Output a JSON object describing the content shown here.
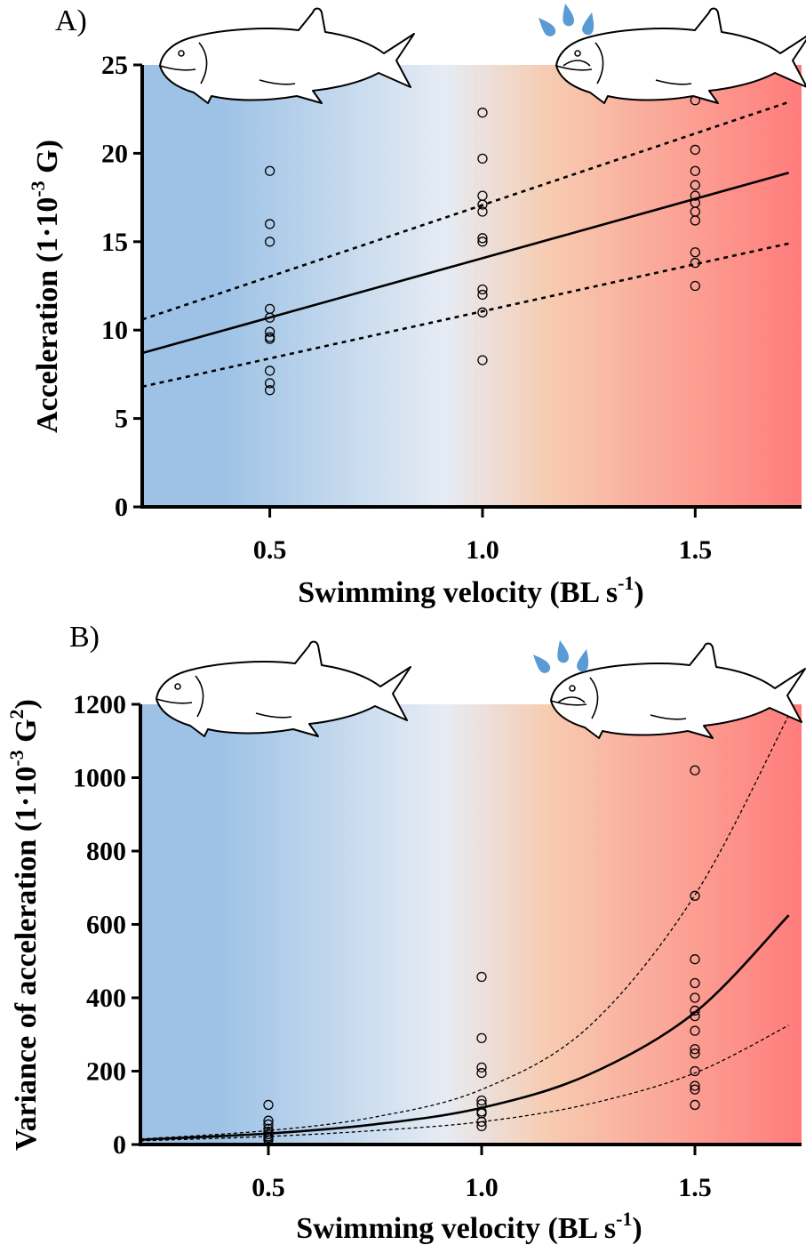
{
  "figure": {
    "panels": [
      {
        "id": "A",
        "label": "A)",
        "x_ticks": [
          "0.5",
          "1.0",
          "1.5"
        ],
        "y_ticks": [
          "0",
          "5",
          "10",
          "15",
          "20",
          "25"
        ],
        "x_title": {
          "main": "Swimming velocity (BL s",
          "sup": "-1",
          "close": ")"
        },
        "y_title": {
          "main": "Acceleration (1·10",
          "sup": "-3",
          "close": " G)"
        }
      },
      {
        "id": "B",
        "label": "B)",
        "x_ticks": [
          "0.5",
          "1.0",
          "1.5"
        ],
        "y_ticks": [
          "0",
          "200",
          "400",
          "600",
          "800",
          "1000",
          "1200"
        ],
        "x_title": {
          "main": "Swimming velocity (BL s",
          "sup": "-1",
          "close": ")"
        },
        "y_title": {
          "main": "Variance of acceleration (1·10",
          "sup": "-3",
          "mid": " G",
          "sup2": "2",
          "close": ")"
        }
      }
    ]
  },
  "colors": {
    "gradient_stops": [
      "#9dc2e6",
      "#e6ecf4",
      "#f7cbb0",
      "#ff7c7c"
    ],
    "points": "#000000",
    "drops": "#5b9bd5"
  },
  "icons": [
    "salmon-calm-icon",
    "salmon-stressed-icon",
    "sweat-drops-icon"
  ],
  "chart_data": [
    {
      "type": "scatter",
      "panel": "A",
      "xlabel": "Swimming velocity (BL s-1)",
      "ylabel": "Acceleration (1·10-3 G)",
      "xlim": [
        0.2,
        1.75
      ],
      "ylim": [
        0,
        25
      ],
      "x_ticks": [
        0.5,
        1.0,
        1.5
      ],
      "y_ticks": [
        0,
        5,
        10,
        15,
        20,
        25
      ],
      "background": "blue-to-red gradient along x",
      "series": [
        {
          "type": "scatter",
          "points": [
            [
              0.5,
              19.0
            ],
            [
              0.5,
              16.0
            ],
            [
              0.5,
              15.0
            ],
            [
              0.5,
              11.2
            ],
            [
              0.5,
              10.7
            ],
            [
              0.5,
              9.9
            ],
            [
              0.5,
              9.6
            ],
            [
              0.5,
              9.5
            ],
            [
              0.5,
              7.7
            ],
            [
              0.5,
              7.0
            ],
            [
              0.5,
              6.6
            ],
            [
              1.0,
              22.3
            ],
            [
              1.0,
              19.7
            ],
            [
              1.0,
              17.6
            ],
            [
              1.0,
              17.1
            ],
            [
              1.0,
              16.7
            ],
            [
              1.0,
              15.2
            ],
            [
              1.0,
              15.0
            ],
            [
              1.0,
              12.3
            ],
            [
              1.0,
              12.0
            ],
            [
              1.0,
              11.0
            ],
            [
              1.0,
              8.3
            ],
            [
              1.5,
              23.0
            ],
            [
              1.5,
              20.2
            ],
            [
              1.5,
              19.0
            ],
            [
              1.5,
              18.2
            ],
            [
              1.5,
              17.6
            ],
            [
              1.5,
              17.2
            ],
            [
              1.5,
              16.7
            ],
            [
              1.5,
              16.2
            ],
            [
              1.5,
              14.4
            ],
            [
              1.5,
              13.8
            ],
            [
              1.5,
              12.5
            ]
          ]
        },
        {
          "type": "line",
          "style": "solid",
          "points": [
            [
              0.2,
              8.7
            ],
            [
              1.72,
              18.9
            ]
          ]
        },
        {
          "type": "line",
          "style": "dashed",
          "points": [
            [
              0.2,
              10.6
            ],
            [
              1.72,
              22.9
            ]
          ]
        },
        {
          "type": "line",
          "style": "dashed",
          "points": [
            [
              0.2,
              6.8
            ],
            [
              1.72,
              14.9
            ]
          ]
        }
      ]
    },
    {
      "type": "scatter",
      "panel": "B",
      "xlabel": "Swimming velocity (BL s-1)",
      "ylabel": "Variance of acceleration (1·10-3 G2)",
      "xlim": [
        0.2,
        1.75
      ],
      "ylim": [
        0,
        1200
      ],
      "x_ticks": [
        0.5,
        1.0,
        1.5
      ],
      "y_ticks": [
        0,
        200,
        400,
        600,
        800,
        1000,
        1200
      ],
      "background": "blue-to-red gradient along x",
      "series": [
        {
          "type": "scatter",
          "points": [
            [
              0.5,
              108
            ],
            [
              0.5,
              65
            ],
            [
              0.5,
              55
            ],
            [
              0.5,
              43
            ],
            [
              0.5,
              35
            ],
            [
              0.5,
              28
            ],
            [
              0.5,
              22
            ],
            [
              0.5,
              18
            ],
            [
              0.5,
              12
            ],
            [
              1.0,
              457
            ],
            [
              1.0,
              290
            ],
            [
              1.0,
              210
            ],
            [
              1.0,
              195
            ],
            [
              1.0,
              120
            ],
            [
              1.0,
              110
            ],
            [
              1.0,
              90
            ],
            [
              1.0,
              85
            ],
            [
              1.0,
              62
            ],
            [
              1.0,
              50
            ],
            [
              1.5,
              1020
            ],
            [
              1.5,
              678
            ],
            [
              1.5,
              505
            ],
            [
              1.5,
              440
            ],
            [
              1.5,
              400
            ],
            [
              1.5,
              365
            ],
            [
              1.5,
              350
            ],
            [
              1.5,
              310
            ],
            [
              1.5,
              260
            ],
            [
              1.5,
              248
            ],
            [
              1.5,
              200
            ],
            [
              1.5,
              160
            ],
            [
              1.5,
              150
            ],
            [
              1.5,
              108
            ]
          ]
        },
        {
          "type": "line",
          "style": "solid",
          "points": [
            [
              0.2,
              13
            ],
            [
              0.5,
              30
            ],
            [
              0.75,
              55
            ],
            [
              1.0,
              100
            ],
            [
              1.25,
              190
            ],
            [
              1.5,
              360
            ],
            [
              1.72,
              625
            ]
          ]
        },
        {
          "type": "line",
          "style": "dotted",
          "points": [
            [
              0.2,
              15
            ],
            [
              0.5,
              38
            ],
            [
              0.75,
              75
            ],
            [
              1.0,
              150
            ],
            [
              1.25,
              320
            ],
            [
              1.5,
              680
            ],
            [
              1.72,
              1170
            ]
          ]
        },
        {
          "type": "line",
          "style": "dotted",
          "points": [
            [
              0.2,
              10
            ],
            [
              0.5,
              22
            ],
            [
              0.75,
              38
            ],
            [
              1.0,
              62
            ],
            [
              1.25,
              110
            ],
            [
              1.5,
              195
            ],
            [
              1.72,
              325
            ]
          ]
        }
      ]
    }
  ]
}
